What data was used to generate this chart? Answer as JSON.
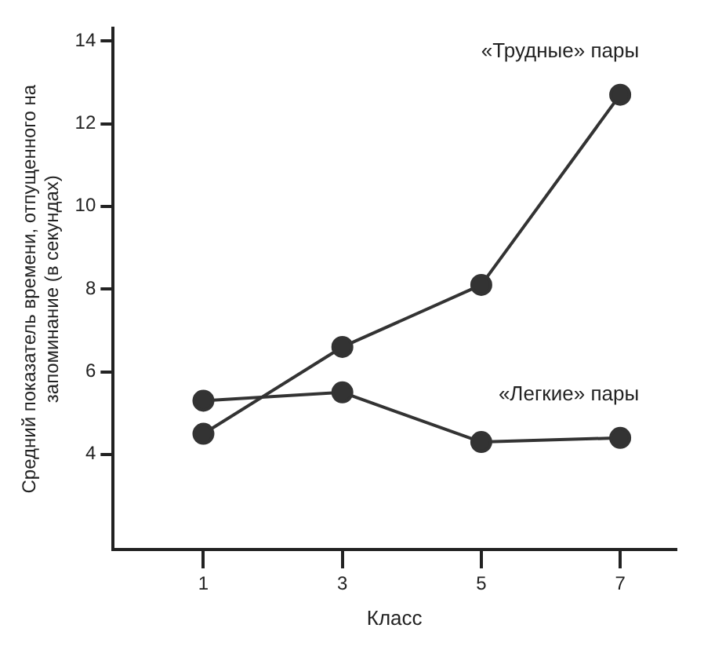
{
  "chart_data": {
    "type": "line",
    "xlabel": "Класс",
    "ylabel": "Средний показатель времени, отпущенного на запоминание (в секундах)",
    "x": [
      1,
      3,
      5,
      7
    ],
    "series": [
      {
        "name": "«Трудные» пары",
        "color": "#333333",
        "values": [
          4.5,
          6.6,
          8.1,
          12.7
        ]
      },
      {
        "name": "«Легкие» пары",
        "color": "#333333",
        "values": [
          5.3,
          5.5,
          4.3,
          4.4
        ]
      }
    ],
    "xlim": [
      -0.3,
      7.8
    ],
    "xticks": [
      1,
      3,
      5,
      7
    ],
    "ylim": [
      1.7,
      14.3
    ],
    "yticks": [
      4,
      6,
      8,
      10,
      12,
      14
    ],
    "grid": false,
    "legend": false,
    "marker": "circle",
    "line_style": "solid"
  }
}
